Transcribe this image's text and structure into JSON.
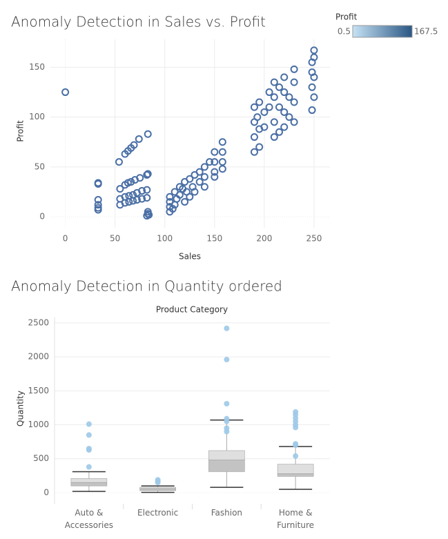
{
  "chart_data": [
    {
      "type": "scatter",
      "title": "Anomaly Detection in Sales vs. Profit",
      "x_label": "Sales",
      "y_label": "Profit",
      "x": [
        0,
        33,
        33,
        33,
        33,
        33,
        33,
        54,
        60,
        63,
        66,
        69,
        74,
        83,
        55,
        60,
        63,
        66,
        70,
        75,
        82,
        83,
        55,
        60,
        64,
        68,
        72,
        77,
        82,
        55,
        60,
        64,
        68,
        72,
        77,
        82,
        83,
        83,
        84,
        82,
        105,
        105,
        105,
        105,
        108,
        110,
        110,
        112,
        115,
        115,
        118,
        120,
        120,
        122,
        125,
        125,
        128,
        130,
        130,
        135,
        135,
        140,
        140,
        140,
        145,
        150,
        150,
        150,
        150,
        158,
        158,
        158,
        158,
        190,
        190,
        190,
        190,
        193,
        195,
        195,
        195,
        200,
        200,
        205,
        205,
        210,
        210,
        210,
        210,
        215,
        215,
        215,
        220,
        220,
        220,
        220,
        225,
        225,
        230,
        230,
        230,
        230,
        248,
        248,
        248,
        248,
        250,
        250,
        250,
        250
      ],
      "values": [
        125,
        34,
        33,
        17,
        12,
        9,
        7,
        55,
        63,
        66,
        69,
        72,
        78,
        83,
        28,
        32,
        34,
        35,
        37,
        39,
        42,
        43,
        18,
        20,
        21,
        22,
        24,
        26,
        27,
        12,
        14,
        15,
        16,
        17,
        18,
        19,
        5,
        3,
        2,
        1,
        5,
        10,
        15,
        20,
        8,
        12,
        25,
        18,
        22,
        30,
        28,
        15,
        35,
        25,
        38,
        20,
        30,
        42,
        25,
        45,
        35,
        50,
        40,
        30,
        55,
        65,
        55,
        45,
        40,
        75,
        65,
        55,
        48,
        65,
        80,
        95,
        110,
        100,
        70,
        88,
        115,
        90,
        105,
        110,
        125,
        80,
        95,
        120,
        135,
        85,
        110,
        130,
        90,
        105,
        125,
        140,
        100,
        120,
        95,
        115,
        135,
        148,
        107,
        130,
        145,
        155,
        160,
        167,
        140,
        120
      ],
      "color": "#4a6fa5",
      "xlim": [
        -15,
        266
      ],
      "ylim": [
        -11,
        178
      ],
      "xticks": [
        0,
        50,
        100,
        150,
        200,
        250
      ],
      "yticks": [
        0,
        50,
        100,
        150
      ],
      "grid": true,
      "color_legend": {
        "title": "Profit",
        "min": 0.5,
        "max": 167.5,
        "colors": [
          "#c6e2f5",
          "#2a5783"
        ]
      }
    },
    {
      "type": "box",
      "title": "Anomaly Detection in Quantity ordered",
      "header": "Product Category",
      "y_label": "Quantity",
      "categories": [
        "Auto & Accessories",
        "Electronic",
        "Fashion",
        "Home & Furniture"
      ],
      "whisker_low": [
        20,
        5,
        80,
        50
      ],
      "q1": [
        100,
        30,
        310,
        240
      ],
      "median": [
        150,
        60,
        480,
        280
      ],
      "q3": [
        210,
        80,
        620,
        420
      ],
      "whisker_high": [
        310,
        100,
        1070,
        680
      ],
      "outliers": [
        [
          1010,
          850,
          650,
          630,
          380
        ],
        [
          190,
          170,
          150
        ],
        [
          2420,
          1960,
          1310,
          1090,
          1050,
          950,
          900
        ],
        [
          1190,
          1150,
          1100,
          1050,
          1000,
          960,
          720,
          700,
          540
        ]
      ],
      "box_colors": [
        "#dcdcdc",
        "#bdbdbd"
      ],
      "point_color": "#9dc9e8",
      "ylim": [
        -163,
        2580
      ],
      "yticks": [
        0,
        500,
        1000,
        1500,
        2000,
        2500
      ],
      "grid": true
    }
  ]
}
